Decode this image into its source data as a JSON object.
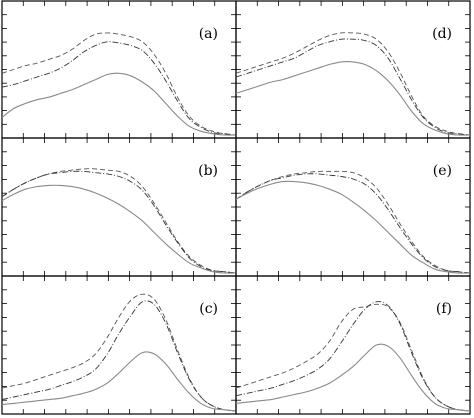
{
  "chart_data": [
    {
      "type": "line",
      "panel_label": "(a)",
      "x": [
        0,
        1,
        2,
        3,
        4,
        5,
        6,
        7,
        8,
        9,
        10,
        11,
        12,
        13,
        14,
        15,
        16,
        17,
        18,
        19,
        20
      ],
      "ylim": [
        0,
        1
      ],
      "series": [
        {
          "style": "dashed",
          "color": "#555555",
          "values": [
            0.49,
            0.52,
            0.55,
            0.57,
            0.6,
            0.63,
            0.68,
            0.75,
            0.8,
            0.81,
            0.8,
            0.78,
            0.74,
            0.64,
            0.49,
            0.3,
            0.15,
            0.07,
            0.03,
            0.01,
            0.0
          ]
        },
        {
          "style": "dashdot",
          "color": "#333333",
          "values": [
            0.38,
            0.4,
            0.43,
            0.46,
            0.49,
            0.53,
            0.59,
            0.66,
            0.71,
            0.74,
            0.73,
            0.71,
            0.67,
            0.57,
            0.43,
            0.27,
            0.13,
            0.06,
            0.02,
            0.01,
            0.0
          ]
        },
        {
          "style": "solid",
          "color": "#8a8a8a",
          "values": [
            0.14,
            0.21,
            0.25,
            0.28,
            0.3,
            0.33,
            0.36,
            0.4,
            0.44,
            0.48,
            0.49,
            0.47,
            0.42,
            0.35,
            0.25,
            0.15,
            0.07,
            0.03,
            0.01,
            0.0,
            0.0
          ]
        }
      ]
    },
    {
      "type": "line",
      "panel_label": "(d)",
      "x": [
        0,
        1,
        2,
        3,
        4,
        5,
        6,
        7,
        8,
        9,
        10,
        11,
        12,
        13,
        14,
        15,
        16,
        17,
        18,
        19,
        20
      ],
      "ylim": [
        0,
        1
      ],
      "series": [
        {
          "style": "dashed",
          "color": "#555555",
          "values": [
            0.49,
            0.52,
            0.55,
            0.58,
            0.61,
            0.65,
            0.7,
            0.75,
            0.79,
            0.81,
            0.81,
            0.8,
            0.76,
            0.66,
            0.5,
            0.31,
            0.15,
            0.07,
            0.03,
            0.01,
            0.0
          ]
        },
        {
          "style": "dashdot",
          "color": "#333333",
          "values": [
            0.46,
            0.49,
            0.52,
            0.55,
            0.58,
            0.61,
            0.66,
            0.71,
            0.74,
            0.76,
            0.76,
            0.75,
            0.71,
            0.61,
            0.45,
            0.28,
            0.14,
            0.06,
            0.02,
            0.01,
            0.0
          ]
        },
        {
          "style": "solid",
          "color": "#8a8a8a",
          "values": [
            0.33,
            0.36,
            0.39,
            0.42,
            0.44,
            0.47,
            0.5,
            0.53,
            0.56,
            0.58,
            0.58,
            0.56,
            0.51,
            0.43,
            0.32,
            0.19,
            0.09,
            0.04,
            0.01,
            0.0,
            0.0
          ]
        }
      ]
    },
    {
      "type": "line",
      "panel_label": "(b)",
      "x": [
        0,
        1,
        2,
        3,
        4,
        5,
        6,
        7,
        8,
        9,
        10,
        11,
        12,
        13,
        14,
        15,
        16,
        17,
        18,
        19,
        20
      ],
      "ylim": [
        0,
        1
      ],
      "series": [
        {
          "style": "dashed",
          "color": "#555555",
          "values": [
            0.6,
            0.66,
            0.71,
            0.75,
            0.78,
            0.8,
            0.81,
            0.82,
            0.82,
            0.81,
            0.8,
            0.76,
            0.68,
            0.55,
            0.4,
            0.25,
            0.13,
            0.06,
            0.02,
            0.01,
            0.0
          ]
        },
        {
          "style": "dashdot",
          "color": "#333333",
          "values": [
            0.6,
            0.66,
            0.71,
            0.75,
            0.78,
            0.79,
            0.8,
            0.8,
            0.79,
            0.78,
            0.76,
            0.72,
            0.65,
            0.53,
            0.38,
            0.24,
            0.12,
            0.05,
            0.02,
            0.01,
            0.0
          ]
        },
        {
          "style": "solid",
          "color": "#8a8a8a",
          "values": [
            0.57,
            0.62,
            0.66,
            0.68,
            0.69,
            0.69,
            0.68,
            0.66,
            0.63,
            0.59,
            0.54,
            0.48,
            0.41,
            0.32,
            0.23,
            0.15,
            0.08,
            0.04,
            0.01,
            0.0,
            0.0
          ]
        }
      ]
    },
    {
      "type": "line",
      "panel_label": "(e)",
      "x": [
        0,
        1,
        2,
        3,
        4,
        5,
        6,
        7,
        8,
        9,
        10,
        11,
        12,
        13,
        14,
        15,
        16,
        17,
        18,
        19,
        20
      ],
      "ylim": [
        0,
        1
      ],
      "series": [
        {
          "style": "dashed",
          "color": "#555555",
          "values": [
            0.58,
            0.64,
            0.69,
            0.73,
            0.76,
            0.78,
            0.79,
            0.8,
            0.8,
            0.8,
            0.79,
            0.75,
            0.67,
            0.54,
            0.39,
            0.25,
            0.13,
            0.06,
            0.02,
            0.01,
            0.0
          ]
        },
        {
          "style": "dashdot",
          "color": "#333333",
          "values": [
            0.58,
            0.64,
            0.69,
            0.73,
            0.75,
            0.77,
            0.78,
            0.78,
            0.77,
            0.76,
            0.74,
            0.7,
            0.62,
            0.5,
            0.36,
            0.23,
            0.12,
            0.05,
            0.02,
            0.01,
            0.0
          ]
        },
        {
          "style": "solid",
          "color": "#8a8a8a",
          "values": [
            0.58,
            0.63,
            0.67,
            0.7,
            0.72,
            0.72,
            0.71,
            0.69,
            0.66,
            0.62,
            0.56,
            0.49,
            0.41,
            0.32,
            0.23,
            0.14,
            0.08,
            0.03,
            0.01,
            0.0,
            0.0
          ]
        }
      ]
    },
    {
      "type": "line",
      "panel_label": "(c)",
      "x": [
        0,
        1,
        2,
        3,
        4,
        5,
        6,
        7,
        8,
        9,
        10,
        11,
        12,
        13,
        14,
        15,
        16,
        17,
        18,
        19,
        20
      ],
      "ylim": [
        0,
        1
      ],
      "series": [
        {
          "style": "dashed",
          "color": "#555555",
          "values": [
            0.18,
            0.2,
            0.22,
            0.25,
            0.28,
            0.31,
            0.34,
            0.38,
            0.45,
            0.58,
            0.74,
            0.87,
            0.92,
            0.88,
            0.72,
            0.48,
            0.26,
            0.11,
            0.04,
            0.01,
            0.0
          ]
        },
        {
          "style": "dashdot",
          "color": "#333333",
          "values": [
            0.09,
            0.11,
            0.13,
            0.15,
            0.17,
            0.2,
            0.23,
            0.27,
            0.33,
            0.45,
            0.61,
            0.75,
            0.86,
            0.84,
            0.69,
            0.46,
            0.25,
            0.11,
            0.04,
            0.01,
            0.0
          ]
        },
        {
          "style": "solid",
          "color": "#8a8a8a",
          "values": [
            0.05,
            0.06,
            0.07,
            0.08,
            0.09,
            0.1,
            0.12,
            0.14,
            0.17,
            0.22,
            0.3,
            0.39,
            0.46,
            0.45,
            0.37,
            0.25,
            0.14,
            0.06,
            0.02,
            0.01,
            0.0
          ]
        }
      ]
    },
    {
      "type": "line",
      "panel_label": "(f)",
      "x": [
        0,
        1,
        2,
        3,
        4,
        5,
        6,
        7,
        8,
        9,
        10,
        11,
        12,
        13,
        14,
        15,
        16,
        17,
        18,
        19,
        20
      ],
      "ylim": [
        0,
        1
      ],
      "series": [
        {
          "style": "dashed",
          "color": "#555555",
          "values": [
            0.18,
            0.21,
            0.24,
            0.27,
            0.3,
            0.34,
            0.39,
            0.45,
            0.55,
            0.7,
            0.8,
            0.82,
            0.84,
            0.82,
            0.7,
            0.48,
            0.26,
            0.11,
            0.04,
            0.01,
            0.0
          ]
        },
        {
          "style": "dashdot",
          "color": "#333333",
          "values": [
            0.12,
            0.14,
            0.16,
            0.18,
            0.21,
            0.24,
            0.28,
            0.33,
            0.41,
            0.54,
            0.68,
            0.8,
            0.86,
            0.83,
            0.69,
            0.46,
            0.25,
            0.11,
            0.04,
            0.01,
            0.0
          ]
        },
        {
          "style": "solid",
          "color": "#8a8a8a",
          "values": [
            0.06,
            0.07,
            0.08,
            0.09,
            0.11,
            0.13,
            0.15,
            0.18,
            0.22,
            0.28,
            0.35,
            0.44,
            0.52,
            0.51,
            0.42,
            0.28,
            0.15,
            0.06,
            0.02,
            0.01,
            0.0
          ]
        }
      ]
    }
  ]
}
